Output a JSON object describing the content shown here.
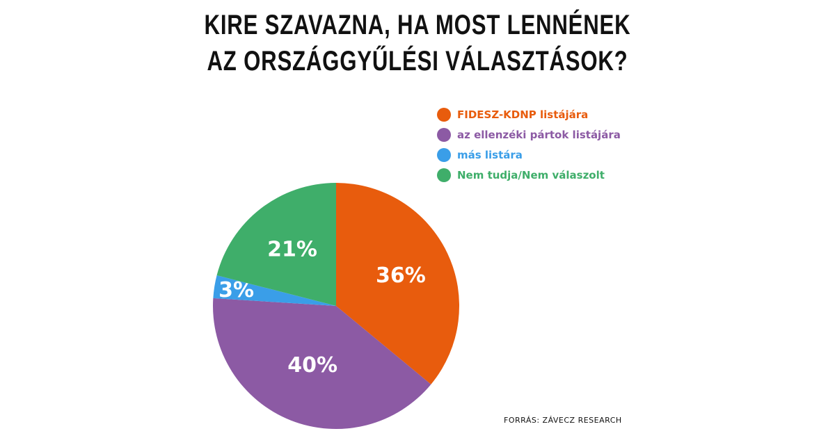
{
  "title": {
    "line1": "KIRE SZAVAZNA, HA MOST LENNÉNEK",
    "line2": "AZ ORSZÁGGYŰLÉSI VÁLASZTÁSOK?"
  },
  "source": "FORRÁS: ZÁVECZ RESEARCH",
  "chart_data": {
    "type": "pie",
    "title": "KIRE SZAVAZNA, HA MOST LENNÉNEK AZ ORSZÁGGYŰLÉSI VÁLASZTÁSOK?",
    "legend_position": "top-right",
    "start_angle_deg": 0,
    "direction": "clockwise",
    "slices": [
      {
        "name": "FIDESZ-KDNP listájára",
        "value": 36,
        "label": "36%",
        "color": "#e85c0d"
      },
      {
        "name": "az ellenzéki pártok listájára",
        "value": 40,
        "label": "40%",
        "color": "#8c5aa4"
      },
      {
        "name": "más listára",
        "value": 3,
        "label": "3%",
        "color": "#3a9ee8"
      },
      {
        "name": "Nem tudja/Nem válaszolt",
        "value": 21,
        "label": "21%",
        "color": "#3fae6a"
      }
    ]
  }
}
